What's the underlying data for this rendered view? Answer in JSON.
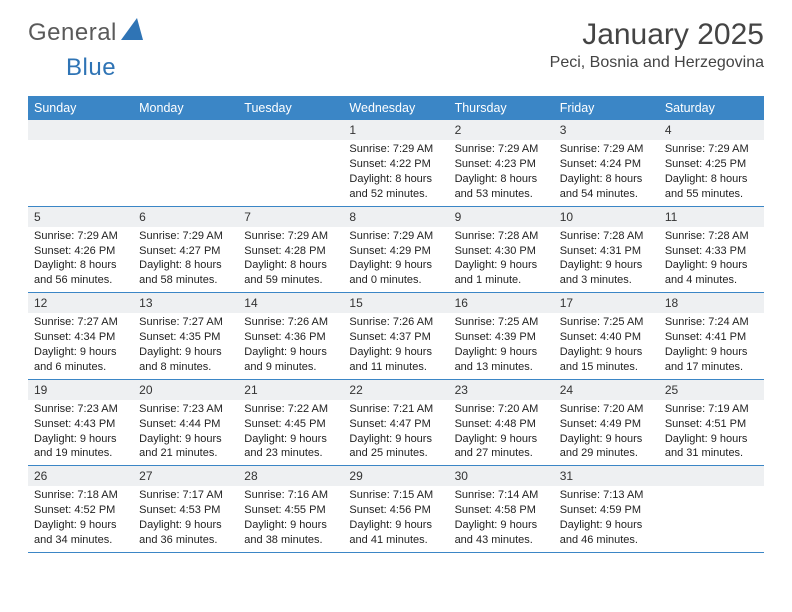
{
  "brand": {
    "word1": "General",
    "word2": "Blue",
    "word1_color": "#5a5a5a",
    "word2_color": "#2f74b5",
    "sail_color": "#2f74b5"
  },
  "title": "January 2025",
  "location": "Peci, Bosnia and Herzegovina",
  "colors": {
    "header_bg": "#3b86c6",
    "header_text": "#ffffff",
    "daynum_band_bg": "#eef0f2",
    "row_border": "#3b86c6",
    "row_border_light": "#9cbedd"
  },
  "day_headers": [
    "Sunday",
    "Monday",
    "Tuesday",
    "Wednesday",
    "Thursday",
    "Friday",
    "Saturday"
  ],
  "weeks": [
    [
      null,
      null,
      null,
      {
        "n": "1",
        "sunrise": "7:29 AM",
        "sunset": "4:22 PM",
        "day_h": "8",
        "day_m": "52"
      },
      {
        "n": "2",
        "sunrise": "7:29 AM",
        "sunset": "4:23 PM",
        "day_h": "8",
        "day_m": "53"
      },
      {
        "n": "3",
        "sunrise": "7:29 AM",
        "sunset": "4:24 PM",
        "day_h": "8",
        "day_m": "54"
      },
      {
        "n": "4",
        "sunrise": "7:29 AM",
        "sunset": "4:25 PM",
        "day_h": "8",
        "day_m": "55"
      }
    ],
    [
      {
        "n": "5",
        "sunrise": "7:29 AM",
        "sunset": "4:26 PM",
        "day_h": "8",
        "day_m": "56"
      },
      {
        "n": "6",
        "sunrise": "7:29 AM",
        "sunset": "4:27 PM",
        "day_h": "8",
        "day_m": "58"
      },
      {
        "n": "7",
        "sunrise": "7:29 AM",
        "sunset": "4:28 PM",
        "day_h": "8",
        "day_m": "59"
      },
      {
        "n": "8",
        "sunrise": "7:29 AM",
        "sunset": "4:29 PM",
        "day_h": "9",
        "day_m": "0"
      },
      {
        "n": "9",
        "sunrise": "7:28 AM",
        "sunset": "4:30 PM",
        "day_h": "9",
        "day_m": "1",
        "min_singular": true
      },
      {
        "n": "10",
        "sunrise": "7:28 AM",
        "sunset": "4:31 PM",
        "day_h": "9",
        "day_m": "3"
      },
      {
        "n": "11",
        "sunrise": "7:28 AM",
        "sunset": "4:33 PM",
        "day_h": "9",
        "day_m": "4"
      }
    ],
    [
      {
        "n": "12",
        "sunrise": "7:27 AM",
        "sunset": "4:34 PM",
        "day_h": "9",
        "day_m": "6"
      },
      {
        "n": "13",
        "sunrise": "7:27 AM",
        "sunset": "4:35 PM",
        "day_h": "9",
        "day_m": "8"
      },
      {
        "n": "14",
        "sunrise": "7:26 AM",
        "sunset": "4:36 PM",
        "day_h": "9",
        "day_m": "9"
      },
      {
        "n": "15",
        "sunrise": "7:26 AM",
        "sunset": "4:37 PM",
        "day_h": "9",
        "day_m": "11"
      },
      {
        "n": "16",
        "sunrise": "7:25 AM",
        "sunset": "4:39 PM",
        "day_h": "9",
        "day_m": "13"
      },
      {
        "n": "17",
        "sunrise": "7:25 AM",
        "sunset": "4:40 PM",
        "day_h": "9",
        "day_m": "15"
      },
      {
        "n": "18",
        "sunrise": "7:24 AM",
        "sunset": "4:41 PM",
        "day_h": "9",
        "day_m": "17"
      }
    ],
    [
      {
        "n": "19",
        "sunrise": "7:23 AM",
        "sunset": "4:43 PM",
        "day_h": "9",
        "day_m": "19"
      },
      {
        "n": "20",
        "sunrise": "7:23 AM",
        "sunset": "4:44 PM",
        "day_h": "9",
        "day_m": "21"
      },
      {
        "n": "21",
        "sunrise": "7:22 AM",
        "sunset": "4:45 PM",
        "day_h": "9",
        "day_m": "23"
      },
      {
        "n": "22",
        "sunrise": "7:21 AM",
        "sunset": "4:47 PM",
        "day_h": "9",
        "day_m": "25"
      },
      {
        "n": "23",
        "sunrise": "7:20 AM",
        "sunset": "4:48 PM",
        "day_h": "9",
        "day_m": "27"
      },
      {
        "n": "24",
        "sunrise": "7:20 AM",
        "sunset": "4:49 PM",
        "day_h": "9",
        "day_m": "29"
      },
      {
        "n": "25",
        "sunrise": "7:19 AM",
        "sunset": "4:51 PM",
        "day_h": "9",
        "day_m": "31"
      }
    ],
    [
      {
        "n": "26",
        "sunrise": "7:18 AM",
        "sunset": "4:52 PM",
        "day_h": "9",
        "day_m": "34"
      },
      {
        "n": "27",
        "sunrise": "7:17 AM",
        "sunset": "4:53 PM",
        "day_h": "9",
        "day_m": "36"
      },
      {
        "n": "28",
        "sunrise": "7:16 AM",
        "sunset": "4:55 PM",
        "day_h": "9",
        "day_m": "38"
      },
      {
        "n": "29",
        "sunrise": "7:15 AM",
        "sunset": "4:56 PM",
        "day_h": "9",
        "day_m": "41"
      },
      {
        "n": "30",
        "sunrise": "7:14 AM",
        "sunset": "4:58 PM",
        "day_h": "9",
        "day_m": "43"
      },
      {
        "n": "31",
        "sunrise": "7:13 AM",
        "sunset": "4:59 PM",
        "day_h": "9",
        "day_m": "46"
      },
      null
    ]
  ],
  "labels": {
    "sunrise": "Sunrise:",
    "sunset": "Sunset:",
    "daylight": "Daylight:",
    "hours": "hours",
    "and": "and",
    "minutes": "minutes.",
    "minute": "minute."
  }
}
